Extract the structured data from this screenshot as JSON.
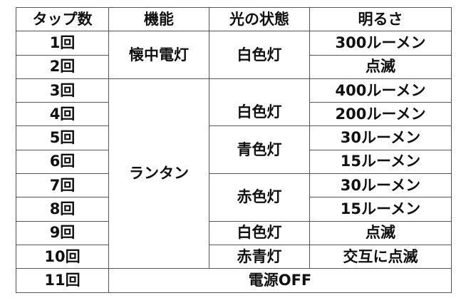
{
  "headers": [
    "タップ数",
    "機能",
    "光の状態",
    "明るさ"
  ],
  "taps": [
    "1回",
    "2回",
    "3回",
    "4回",
    "5回",
    "6回",
    "7回",
    "8回",
    "9回",
    "10回",
    "11回"
  ],
  "functions": [
    "懐中電灯",
    "ランタン"
  ],
  "light_states": [
    "白色灯",
    "白色灯",
    "青色灯",
    "赤色灯",
    "白色灯",
    "赤青灯"
  ],
  "brightness": [
    "300ルーメン",
    "点滅",
    "400ルーメン",
    "200ルーメン",
    "30ルーメン",
    "15ルーメン",
    "30ルーメン",
    "15ルーメン",
    "点滅",
    "交互に点滅"
  ],
  "power_off": "電源OFF"
}
